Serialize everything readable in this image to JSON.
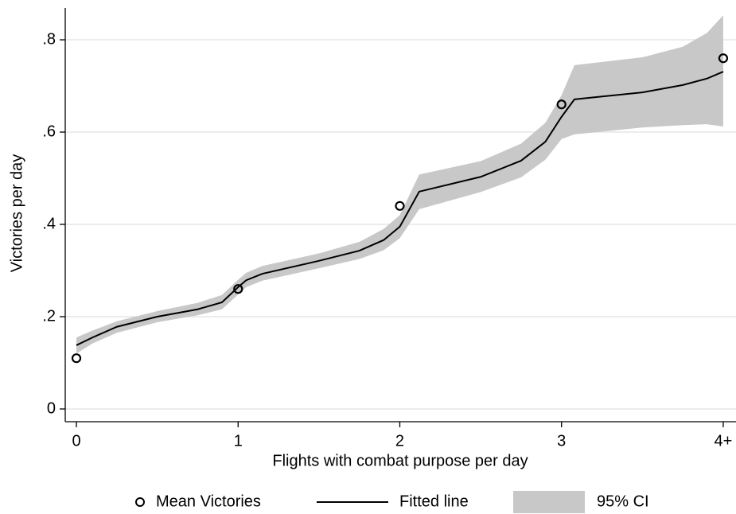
{
  "chart_data": {
    "type": "line",
    "xlabel": "Flights with combat purpose per day",
    "ylabel": "Victories per day",
    "xlim": [
      -0.069,
      4.079
    ],
    "ylim": [
      -0.0276,
      0.869
    ],
    "xticks": [
      0,
      1,
      2,
      3,
      {
        "value": 4,
        "label": "4+"
      }
    ],
    "yticks": [
      0,
      {
        "value": 0.2,
        "label": ".2"
      },
      {
        "value": 0.4,
        "label": ".4"
      },
      {
        "value": 0.6,
        "label": ".6"
      },
      {
        "value": 0.8,
        "label": ".8"
      }
    ],
    "grid": true,
    "legend": "bottom",
    "series": [
      {
        "name": "95% CI",
        "type": "band",
        "color": "#c8c8c8",
        "x": [
          0,
          0.1,
          0.25,
          0.5,
          0.75,
          0.9,
          1.0,
          1.05,
          1.15,
          1.5,
          1.75,
          1.9,
          2.0,
          2.12,
          2.5,
          2.75,
          2.9,
          3.0,
          3.08,
          3.5,
          3.75,
          3.9,
          4.0
        ],
        "lower": [
          0.12,
          0.142,
          0.165,
          0.188,
          0.203,
          0.216,
          0.248,
          0.264,
          0.278,
          0.305,
          0.325,
          0.344,
          0.37,
          0.433,
          0.47,
          0.502,
          0.54,
          0.585,
          0.595,
          0.61,
          0.615,
          0.617,
          0.612
        ],
        "upper": [
          0.155,
          0.17,
          0.19,
          0.212,
          0.23,
          0.247,
          0.28,
          0.295,
          0.31,
          0.337,
          0.362,
          0.39,
          0.42,
          0.508,
          0.537,
          0.575,
          0.62,
          0.68,
          0.745,
          0.762,
          0.785,
          0.815,
          0.853
        ]
      },
      {
        "name": "Fitted line",
        "type": "line",
        "color": "#000000",
        "x": [
          0,
          0.1,
          0.25,
          0.5,
          0.75,
          0.9,
          1.0,
          1.05,
          1.15,
          1.5,
          1.75,
          1.9,
          2.0,
          2.12,
          2.5,
          2.75,
          2.9,
          3.0,
          3.08,
          3.5,
          3.75,
          3.9,
          4.0
        ],
        "values": [
          0.138,
          0.155,
          0.178,
          0.2,
          0.216,
          0.231,
          0.264,
          0.279,
          0.293,
          0.321,
          0.343,
          0.366,
          0.395,
          0.471,
          0.503,
          0.538,
          0.579,
          0.633,
          0.671,
          0.686,
          0.702,
          0.716,
          0.731
        ]
      },
      {
        "name": "Mean Victories",
        "type": "scatter",
        "color": "#000000",
        "x": [
          0,
          1,
          2,
          3,
          4
        ],
        "values": [
          0.11,
          0.26,
          0.44,
          0.66,
          0.76
        ]
      }
    ]
  }
}
